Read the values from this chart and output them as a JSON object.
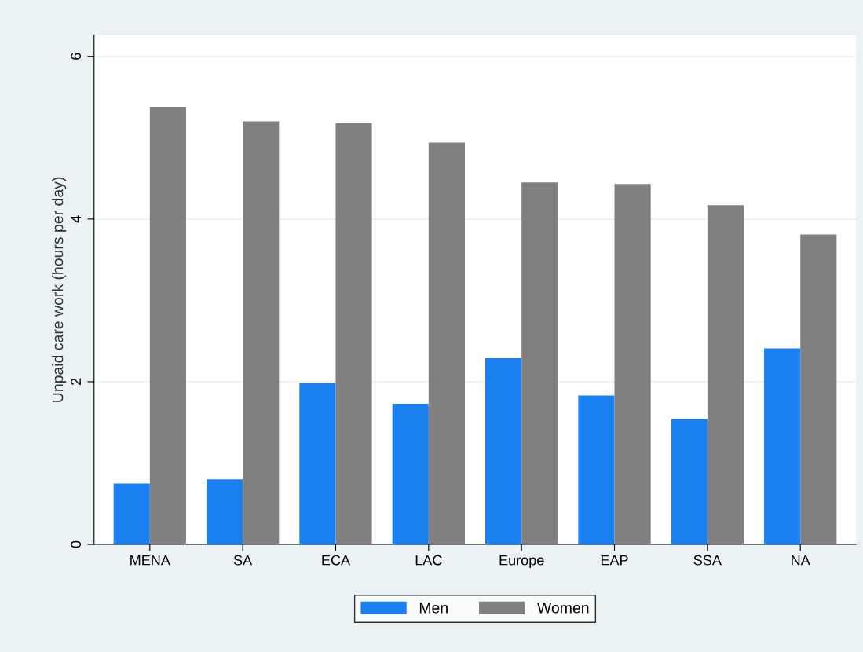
{
  "chart_data": {
    "type": "bar",
    "ylabel": "Unpaid care work (hours per day)",
    "categories": [
      "MENA",
      "SA",
      "ECA",
      "LAC",
      "Europe",
      "EAP",
      "SSA",
      "NA"
    ],
    "series": [
      {
        "name": "Men",
        "color": "#1a80f0",
        "values": [
          0.75,
          0.8,
          1.98,
          1.73,
          2.29,
          1.83,
          1.54,
          2.41
        ]
      },
      {
        "name": "Women",
        "color": "#808080",
        "values": [
          5.38,
          5.2,
          5.18,
          4.94,
          4.45,
          4.43,
          4.17,
          3.81
        ]
      }
    ],
    "ylim": [
      0,
      6.26
    ],
    "yticks": [
      0,
      2,
      4,
      6
    ],
    "grid": "y",
    "legend": "bottom"
  }
}
